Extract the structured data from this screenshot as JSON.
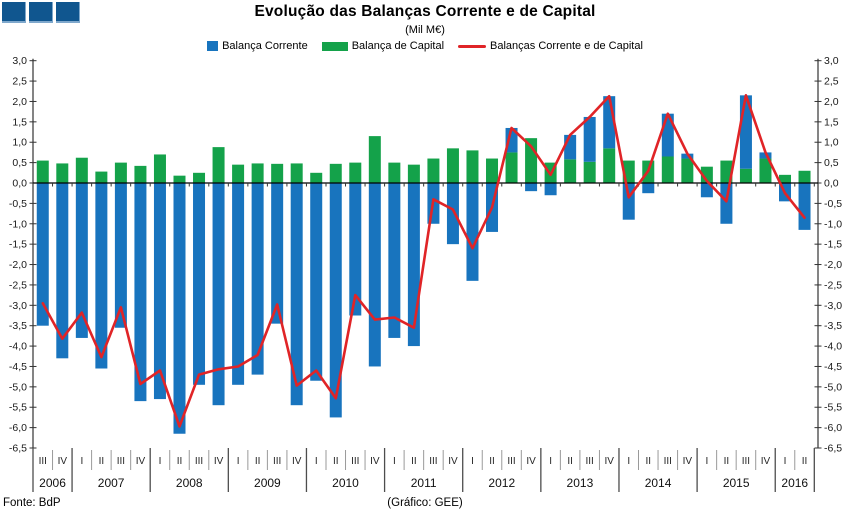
{
  "title": "Evolução das Balanças Corrente e de Capital",
  "subtitle": "(Mil M€)",
  "logo": {
    "squares": 3,
    "color": "#10568F"
  },
  "legend": [
    {
      "label": "Balança Corrente",
      "color": "#1874BE",
      "marker": "square"
    },
    {
      "label": "Balança de Capital",
      "color": "#14A24A",
      "marker": "bar"
    },
    {
      "label": "Balanças Corrente e de Capital",
      "color": "#E02427",
      "marker": "line"
    }
  ],
  "footer": {
    "source": "Fonte: BdP",
    "credit": "(Gráfico: GEE)"
  },
  "colors": {
    "corrente": "#1874BE",
    "capital": "#14A24A",
    "total_line": "#E02427",
    "axis": "#333333",
    "quarter_sep": "#9a9a9a",
    "year_sep": "#4d4d4d"
  },
  "chart_data": {
    "type": "bar",
    "stacked": true,
    "line_overlay": true,
    "title": "Evolução das Balanças Corrente e de Capital",
    "subtitle": "(Mil M€)",
    "ylim": [
      -6.5,
      3.0
    ],
    "ytick_step": 0.5,
    "grid": false,
    "legend_position": "top",
    "decimal_separator": ",",
    "years": [
      {
        "year": "2006",
        "quarters": [
          "III",
          "IV"
        ]
      },
      {
        "year": "2007",
        "quarters": [
          "I",
          "II",
          "III",
          "IV"
        ]
      },
      {
        "year": "2008",
        "quarters": [
          "I",
          "II",
          "III",
          "IV"
        ]
      },
      {
        "year": "2009",
        "quarters": [
          "I",
          "II",
          "III",
          "IV"
        ]
      },
      {
        "year": "2010",
        "quarters": [
          "I",
          "II",
          "III",
          "IV"
        ]
      },
      {
        "year": "2011",
        "quarters": [
          "I",
          "II",
          "III",
          "IV"
        ]
      },
      {
        "year": "2012",
        "quarters": [
          "I",
          "II",
          "III",
          "IV"
        ]
      },
      {
        "year": "2013",
        "quarters": [
          "I",
          "II",
          "III",
          "IV"
        ]
      },
      {
        "year": "2014",
        "quarters": [
          "I",
          "II",
          "III",
          "IV"
        ]
      },
      {
        "year": "2015",
        "quarters": [
          "I",
          "II",
          "III",
          "IV"
        ]
      },
      {
        "year": "2016",
        "quarters": [
          "I",
          "II"
        ]
      }
    ],
    "series": [
      {
        "name": "Balança Corrente",
        "type": "bar",
        "color": "#1874BE",
        "values": [
          -3.5,
          -4.3,
          -3.8,
          -4.55,
          -3.55,
          -5.35,
          -5.3,
          -6.15,
          -4.95,
          -5.45,
          -4.95,
          -4.7,
          -3.45,
          -5.45,
          -4.85,
          -5.75,
          -3.25,
          -4.5,
          -3.8,
          -4.0,
          -1.0,
          -1.5,
          -2.4,
          -1.2,
          0.6,
          -0.2,
          -0.3,
          0.6,
          1.1,
          1.28,
          -0.9,
          -0.25,
          1.05,
          0.12,
          -0.35,
          -1.0,
          1.8,
          0.15,
          -0.45,
          -1.15
        ]
      },
      {
        "name": "Balança de Capital",
        "type": "bar",
        "color": "#14A24A",
        "values": [
          0.55,
          0.48,
          0.62,
          0.28,
          0.5,
          0.42,
          0.7,
          0.18,
          0.25,
          0.88,
          0.45,
          0.48,
          0.47,
          0.48,
          0.25,
          0.47,
          0.5,
          1.15,
          0.5,
          0.45,
          0.6,
          0.85,
          0.8,
          0.6,
          0.75,
          1.1,
          0.5,
          0.58,
          0.52,
          0.85,
          0.55,
          0.55,
          0.65,
          0.6,
          0.4,
          0.55,
          0.35,
          0.6,
          0.2,
          0.3
        ]
      },
      {
        "name": "Balanças Corrente e de Capital",
        "type": "line",
        "color": "#E02427",
        "values": [
          -2.95,
          -3.82,
          -3.18,
          -4.27,
          -3.05,
          -4.93,
          -4.6,
          -5.97,
          -4.7,
          -4.57,
          -4.5,
          -4.22,
          -2.98,
          -4.97,
          -4.6,
          -5.28,
          -2.75,
          -3.35,
          -3.3,
          -3.55,
          -0.4,
          -0.65,
          -1.6,
          -0.6,
          1.35,
          0.9,
          0.2,
          1.18,
          1.62,
          2.13,
          -0.35,
          0.3,
          1.7,
          0.72,
          0.05,
          -0.45,
          2.15,
          0.75,
          -0.25,
          -0.85
        ]
      }
    ]
  }
}
